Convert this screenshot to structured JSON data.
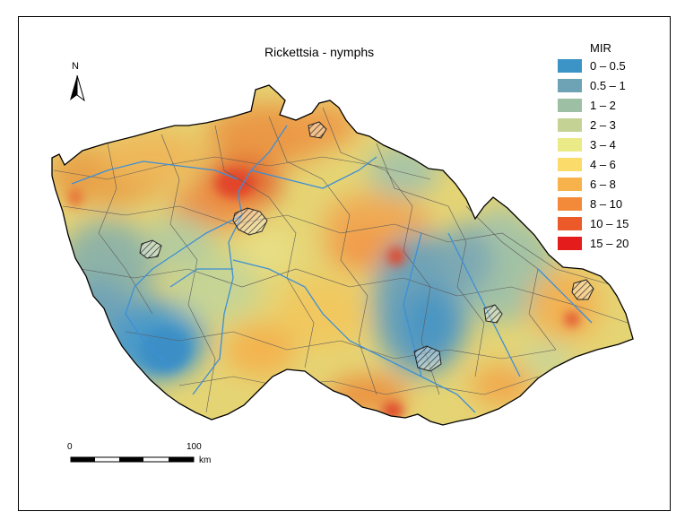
{
  "map": {
    "title": "Rickettsia - nymphs",
    "north_label": "N",
    "legend": {
      "title": "MIR",
      "items": [
        {
          "label": "0 – 0.5",
          "color": "#3c93c6"
        },
        {
          "label": "0.5 – 1",
          "color": "#6ea3b6"
        },
        {
          "label": "1 – 2",
          "color": "#9dbfa4"
        },
        {
          "label": "2 – 3",
          "color": "#c4d394"
        },
        {
          "label": "3 – 4",
          "color": "#eaea86"
        },
        {
          "label": "4 – 6",
          "color": "#fbdc6a"
        },
        {
          "label": "6 – 8",
          "color": "#f7b24c"
        },
        {
          "label": "8 – 10",
          "color": "#f38a3a"
        },
        {
          "label": "10 – 15",
          "color": "#ec5a2a"
        },
        {
          "label": "15 – 20",
          "color": "#e51c1c"
        }
      ]
    },
    "scale": {
      "start": "0",
      "end": "100",
      "unit": "km"
    }
  }
}
